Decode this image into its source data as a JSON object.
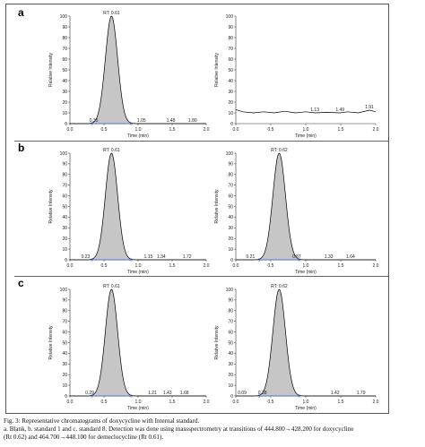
{
  "panel_labels": [
    "a",
    "b",
    "c"
  ],
  "caption": {
    "line1": "Fig. 3: Representative chromatograms of doxycycline with Internal standard.",
    "line2": "a. Blank, b. standard 1 and c. standard 8. Detection was done using massspectrometry at transitions of 444.800→428.200 for doxycycline",
    "line3": "(Rt 0.62) and 464.700→448.100 for demeclocycline (Rt 0.61)."
  },
  "colors": {
    "peak_fill": "#c6c6c6",
    "trace": "#000000",
    "baseline_blue": "#3355cc",
    "frame": "#555555"
  },
  "chart_data": [
    {
      "id": "a-left",
      "type": "line",
      "panel": "a",
      "xlabel": "Time (min)",
      "ylabel": "Relative Intensity",
      "xlim": [
        0,
        2.0
      ],
      "ylim": [
        0,
        100
      ],
      "xticks": [
        "0.0",
        "0.5",
        "1.0",
        "1.5",
        "2.0"
      ],
      "yticks": [
        "0",
        "10",
        "20",
        "30",
        "40",
        "50",
        "60",
        "70",
        "80",
        "90",
        "100"
      ],
      "peak": {
        "rt": 0.61,
        "height": 100,
        "width": 0.09,
        "label": "RT: 0.61"
      },
      "baseline": 0,
      "annotations": [
        {
          "x": 0.35,
          "text": "0.35"
        },
        {
          "x": 1.05,
          "text": "1.05"
        },
        {
          "x": 1.48,
          "text": "1.48"
        },
        {
          "x": 1.8,
          "text": "1.80"
        }
      ]
    },
    {
      "id": "a-right",
      "type": "line",
      "panel": "a",
      "xlabel": "Time (min)",
      "ylabel": "Relative Intensity",
      "xlim": [
        0,
        2.0
      ],
      "ylim": [
        0,
        100
      ],
      "xticks": [
        "0.0",
        "0.5",
        "1.0",
        "1.5",
        "2.0"
      ],
      "yticks": [
        "0",
        "10",
        "20",
        "30",
        "40",
        "50",
        "60",
        "70",
        "80",
        "90",
        "100"
      ],
      "peak": null,
      "baseline": 10,
      "noise": [
        [
          0,
          13
        ],
        [
          0.1,
          11
        ],
        [
          0.25,
          10
        ],
        [
          0.4,
          11
        ],
        [
          0.55,
          10
        ],
        [
          0.7,
          11.5
        ],
        [
          0.85,
          10
        ],
        [
          1.0,
          11
        ],
        [
          1.13,
          10
        ],
        [
          1.3,
          10.5
        ],
        [
          1.49,
          10
        ],
        [
          1.6,
          11
        ],
        [
          1.75,
          10
        ],
        [
          1.91,
          12.5
        ],
        [
          2.0,
          11
        ]
      ],
      "annotations": [
        {
          "x": 1.13,
          "text": "1.13"
        },
        {
          "x": 1.49,
          "text": "1.49"
        },
        {
          "x": 1.91,
          "text": "1.91"
        }
      ]
    },
    {
      "id": "b-left",
      "type": "line",
      "panel": "b",
      "xlabel": "Time (min)",
      "ylabel": "Relative Intensity",
      "xlim": [
        0,
        2.0
      ],
      "ylim": [
        0,
        100
      ],
      "xticks": [
        "0.0",
        "0.5",
        "1.0",
        "1.5",
        "2.0"
      ],
      "yticks": [
        "0",
        "10",
        "20",
        "30",
        "40",
        "50",
        "60",
        "70",
        "80",
        "90",
        "100"
      ],
      "peak": {
        "rt": 0.61,
        "height": 100,
        "width": 0.09,
        "label": "RT: 0.61"
      },
      "baseline": 0,
      "annotations": [
        {
          "x": 0.23,
          "text": "0.23"
        },
        {
          "x": 1.15,
          "text": "1.15"
        },
        {
          "x": 1.34,
          "text": "1.34"
        },
        {
          "x": 1.72,
          "text": "1.72"
        }
      ]
    },
    {
      "id": "b-right",
      "type": "line",
      "panel": "b",
      "xlabel": "Time (min)",
      "ylabel": "Relative Intensity",
      "xlim": [
        0,
        2.0
      ],
      "ylim": [
        0,
        100
      ],
      "xticks": [
        "0.0",
        "0.5",
        "1.0",
        "1.5",
        "2.0"
      ],
      "yticks": [
        "0",
        "10",
        "20",
        "30",
        "40",
        "50",
        "60",
        "70",
        "80",
        "90",
        "100"
      ],
      "peak": {
        "rt": 0.62,
        "height": 100,
        "width": 0.09,
        "label": "RT: 0.62"
      },
      "baseline": 0,
      "annotations": [
        {
          "x": 0.21,
          "text": "0.21"
        },
        {
          "x": 0.87,
          "text": "0.87"
        },
        {
          "x": 1.33,
          "text": "1.33"
        },
        {
          "x": 1.64,
          "text": "1.64"
        }
      ]
    },
    {
      "id": "c-left",
      "type": "line",
      "panel": "c",
      "xlabel": "Time (min)",
      "ylabel": "Relative Intensity",
      "xlim": [
        0,
        2.0
      ],
      "ylim": [
        0,
        100
      ],
      "xticks": [
        "0.0",
        "0.5",
        "1.0",
        "1.5",
        "2.0"
      ],
      "yticks": [
        "0",
        "10",
        "20",
        "30",
        "40",
        "50",
        "60",
        "70",
        "80",
        "90",
        "100"
      ],
      "peak": {
        "rt": 0.61,
        "height": 100,
        "width": 0.09,
        "label": "RT: 0.61"
      },
      "baseline": 0,
      "annotations": [
        {
          "x": 0.29,
          "text": "0.29"
        },
        {
          "x": 1.21,
          "text": "1.21"
        },
        {
          "x": 1.43,
          "text": "1.43"
        },
        {
          "x": 1.68,
          "text": "1.68"
        }
      ]
    },
    {
      "id": "c-right",
      "type": "line",
      "panel": "c",
      "xlabel": "Time (min)",
      "ylabel": "Relative Intensity",
      "xlim": [
        0,
        2.0
      ],
      "ylim": [
        0,
        100
      ],
      "xticks": [
        "0.0",
        "0.5",
        "1.0",
        "1.5",
        "2.0"
      ],
      "yticks": [
        "0",
        "10",
        "20",
        "30",
        "40",
        "50",
        "60",
        "70",
        "80",
        "90",
        "100"
      ],
      "peak": {
        "rt": 0.62,
        "height": 100,
        "width": 0.09,
        "label": "RT: 0.62"
      },
      "baseline": 0,
      "annotations": [
        {
          "x": 0.09,
          "text": "0.09"
        },
        {
          "x": 0.38,
          "text": "0.38"
        },
        {
          "x": 1.42,
          "text": "1.42"
        },
        {
          "x": 1.79,
          "text": "1.79"
        }
      ]
    }
  ]
}
